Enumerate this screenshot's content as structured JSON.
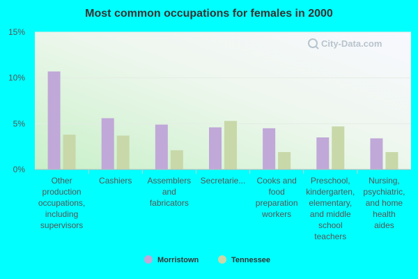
{
  "chart_data": {
    "type": "bar",
    "title": "Most common occupations for females in 2000",
    "categories": [
      [
        "Other",
        "production",
        "occupations,",
        "including",
        "supervisors"
      ],
      [
        "Cashiers"
      ],
      [
        "Assemblers",
        "and",
        "fabricators"
      ],
      [
        "Secretarie..."
      ],
      [
        "Cooks and",
        "food",
        "preparation",
        "workers"
      ],
      [
        "Preschool,",
        "kindergarten,",
        "elementary,",
        "and middle",
        "school",
        "teachers"
      ],
      [
        "Nursing,",
        "psychiatric,",
        "and home",
        "health",
        "aides"
      ]
    ],
    "series": [
      {
        "name": "Morristown",
        "color": "#c0a8d8",
        "values": [
          10.7,
          5.6,
          4.9,
          4.6,
          4.5,
          3.5,
          3.4
        ]
      },
      {
        "name": "Tennessee",
        "color": "#c8d8a8",
        "values": [
          3.8,
          3.7,
          2.1,
          5.3,
          1.9,
          4.7,
          1.9
        ]
      }
    ],
    "yticks": [
      "0%",
      "5%",
      "10%",
      "15%"
    ],
    "ylim": [
      0,
      15
    ],
    "legend_position": "bottom",
    "grid": true
  },
  "watermark": "City-Data.com"
}
